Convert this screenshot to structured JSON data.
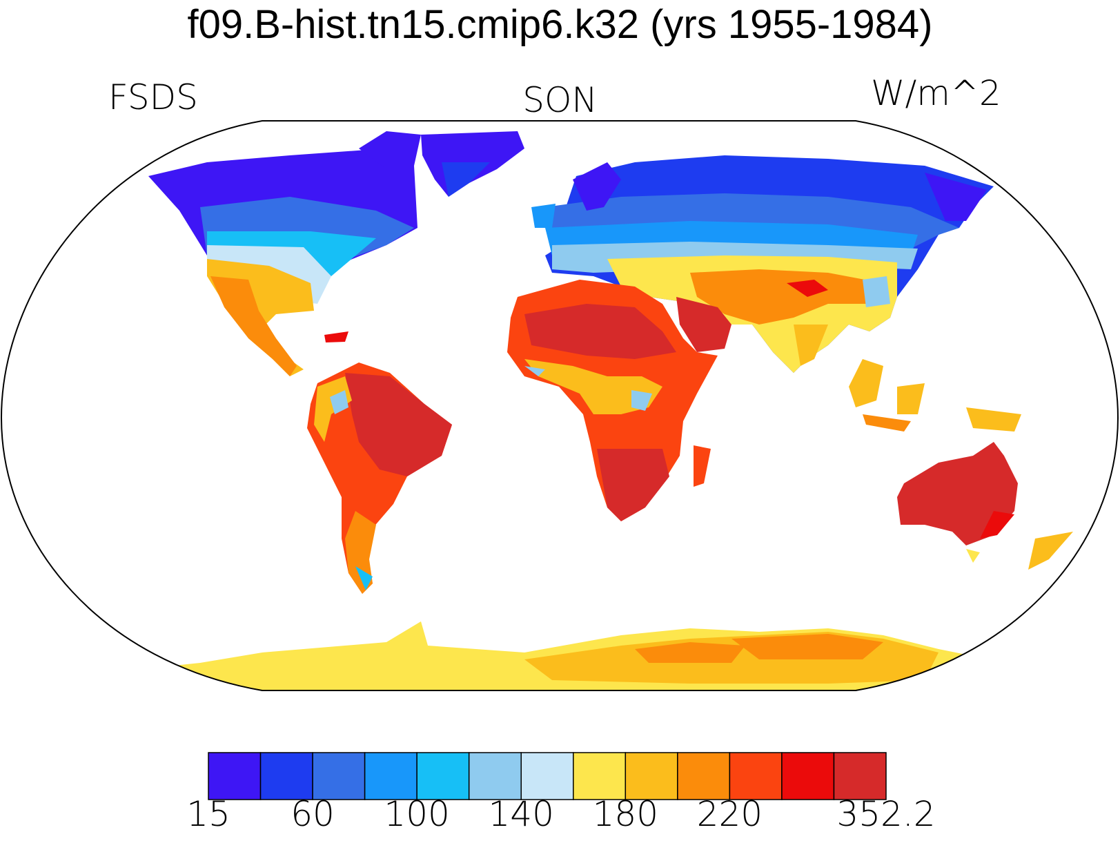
{
  "title": "f09.B-hist.tn15.cmip6.k32 (yrs 1955-1984)",
  "left_label": "FSDS",
  "center_label": "SON",
  "right_label": "W/m^2",
  "colorbar": {
    "colors": [
      "#3e16f5",
      "#1e3cf0",
      "#356fe6",
      "#1897fa",
      "#17bff6",
      "#8fcbef",
      "#c8e6f8",
      "#fde64d",
      "#fbbd1c",
      "#fb8c0b",
      "#fb4410",
      "#eb0b0b",
      "#d62a2a"
    ],
    "tick_labels": [
      "15",
      "60",
      "100",
      "140",
      "180",
      "220",
      "352.2"
    ]
  }
}
